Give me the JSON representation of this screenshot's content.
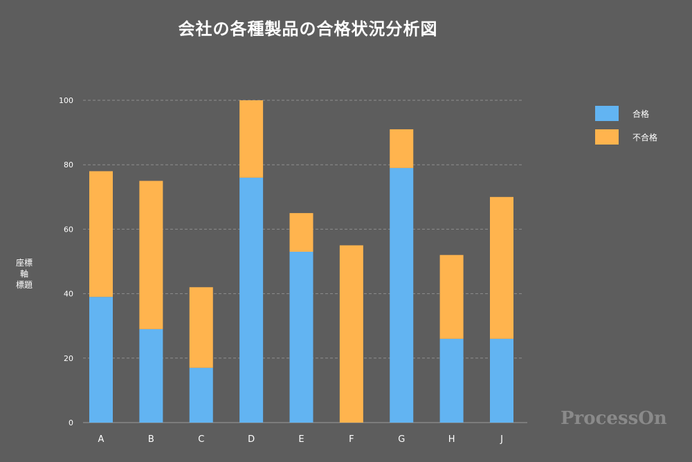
{
  "chart_data": {
    "type": "bar",
    "stacked": true,
    "title": "会社の各種製品の合格状況分析図",
    "ylabel": [
      "座標",
      "軸",
      "標題"
    ],
    "xlabel": "",
    "categories": [
      "A",
      "B",
      "C",
      "D",
      "E",
      "F",
      "G",
      "H",
      "J"
    ],
    "series": [
      {
        "name": "合格",
        "color": "#62b4f2",
        "values": [
          39,
          29,
          17,
          76,
          53,
          0,
          79,
          26,
          26
        ]
      },
      {
        "name": "不合格",
        "color": "#ffb44e",
        "values": [
          39,
          46,
          25,
          24,
          12,
          55,
          12,
          26,
          44
        ]
      }
    ],
    "ylim": [
      0,
      100
    ],
    "yticks": [
      0,
      20,
      40,
      60,
      80,
      100
    ],
    "grid": true,
    "legend_position": "top-right"
  },
  "watermark": "ProcessOn"
}
